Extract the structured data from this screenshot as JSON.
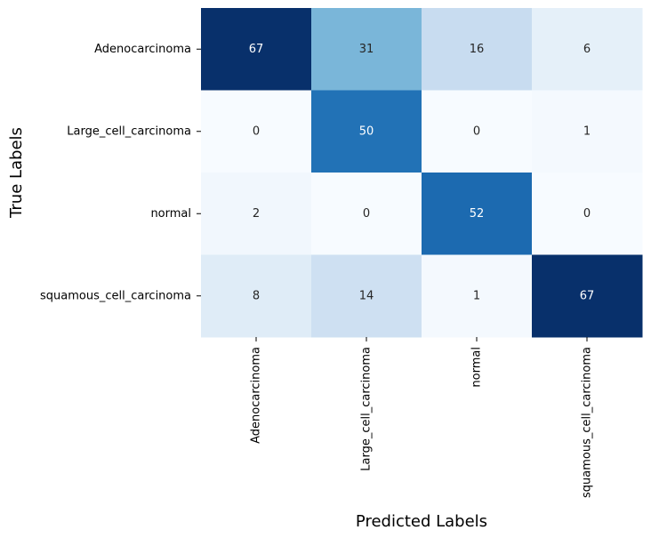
{
  "chart_data": {
    "type": "heatmap",
    "title": "",
    "xlabel": "Predicted Labels",
    "ylabel": "True Labels",
    "x_categories": [
      "Adenocarcinoma",
      "Large_cell_carcinoma",
      "normal",
      "squamous_cell_carcinoma"
    ],
    "y_categories": [
      "Adenocarcinoma",
      "Large_cell_carcinoma",
      "normal",
      "squamous_cell_carcinoma"
    ],
    "values": [
      [
        67,
        31,
        16,
        6
      ],
      [
        0,
        50,
        0,
        1
      ],
      [
        2,
        0,
        52,
        0
      ],
      [
        8,
        14,
        1,
        67
      ]
    ],
    "value_range": [
      0,
      67
    ],
    "colormap": "Blues",
    "colorbar": false,
    "annotations": true
  }
}
